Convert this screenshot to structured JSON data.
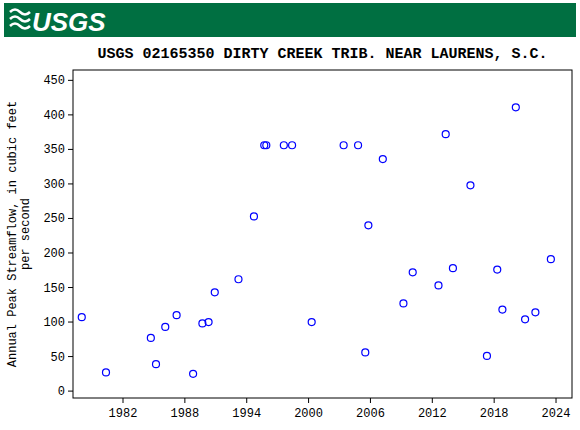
{
  "header": {
    "logo": "USGS"
  },
  "chart_data": {
    "type": "scatter",
    "title": "USGS 02165350 DIRTY CREEK TRIB. NEAR LAURENS, S.C.",
    "y_label": [
      "Annual Peak Streamflow, in cubic feet",
      "per second"
    ],
    "x": [
      1978.0,
      1980.35,
      1984.7,
      1985.2,
      1986.1,
      1987.2,
      1988.8,
      1989.7,
      1990.3,
      1990.9,
      1993.2,
      1994.7,
      1995.7,
      1995.9,
      1997.6,
      1998.4,
      2000.3,
      2003.4,
      2004.8,
      2005.5,
      2005.8,
      2007.2,
      2009.2,
      2010.1,
      2012.6,
      2013.3,
      2014.0,
      2015.7,
      2017.3,
      2018.3,
      2018.8,
      2020.1,
      2021.0,
      2022.0,
      2023.5
    ],
    "values": [
      107,
      27,
      77,
      39,
      93,
      110,
      25,
      98,
      100,
      143,
      162,
      253,
      356,
      356,
      356,
      356,
      100,
      356,
      356,
      56,
      240,
      336,
      127,
      172,
      153,
      372,
      178,
      298,
      51,
      176,
      118,
      411,
      104,
      114,
      191
    ],
    "color": "#0000ff",
    "marker": "circle",
    "xlim": [
      1977.15,
      2025.55
    ],
    "xticks": [
      1982,
      1988,
      1994,
      2000,
      2006,
      2012,
      2018,
      2024
    ],
    "ylim": [
      -10,
      465
    ],
    "yticks": [
      0,
      50,
      100,
      150,
      200,
      250,
      300,
      350,
      400,
      450
    ],
    "grid": false
  }
}
